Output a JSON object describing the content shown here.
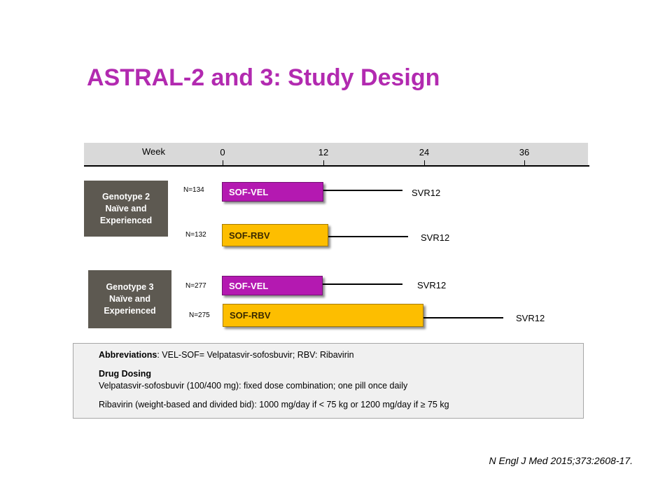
{
  "title": "ASTRAL-2 and 3: Study Design",
  "axis": {
    "label": "Week",
    "ticks": [
      "0",
      "12",
      "24",
      "36"
    ]
  },
  "groups": [
    {
      "lines": [
        "Genotype 2",
        "Naïve and",
        "Experienced"
      ]
    },
    {
      "lines": [
        "Genotype 3",
        "Naïve and",
        "Experienced"
      ]
    }
  ],
  "arms": [
    {
      "n": "N=134",
      "regimen": "SOF-VEL",
      "endpoint": "SVR12"
    },
    {
      "n": "N=132",
      "regimen": "SOF-RBV",
      "endpoint": "SVR12"
    },
    {
      "n": "N=277",
      "regimen": "SOF-VEL",
      "endpoint": "SVR12"
    },
    {
      "n": "N=275",
      "regimen": "SOF-RBV",
      "endpoint": "SVR12"
    }
  ],
  "info": {
    "abbrev_label": "Abbreviations",
    "abbrev_text": ": VEL-SOF= Velpatasvir-sofosbuvir; RBV: Ribavirin",
    "dosing_label": "Drug Dosing",
    "dosing_line1": "Velpatasvir-sofosbuvir (100/400 mg): fixed dose combination; one pill once daily",
    "dosing_line2": "Ribavirin (weight-based and divided bid): 1000 mg/day if < 75 kg or 1200 mg/day if ≥ 75 kg"
  },
  "citation": "N Engl J Med 2015;373:2608-17.",
  "colors": {
    "title": "#b22ab0",
    "sof_vel": "#b419b1",
    "sof_rbv": "#fdbe00",
    "group_box": "#5d5951"
  }
}
